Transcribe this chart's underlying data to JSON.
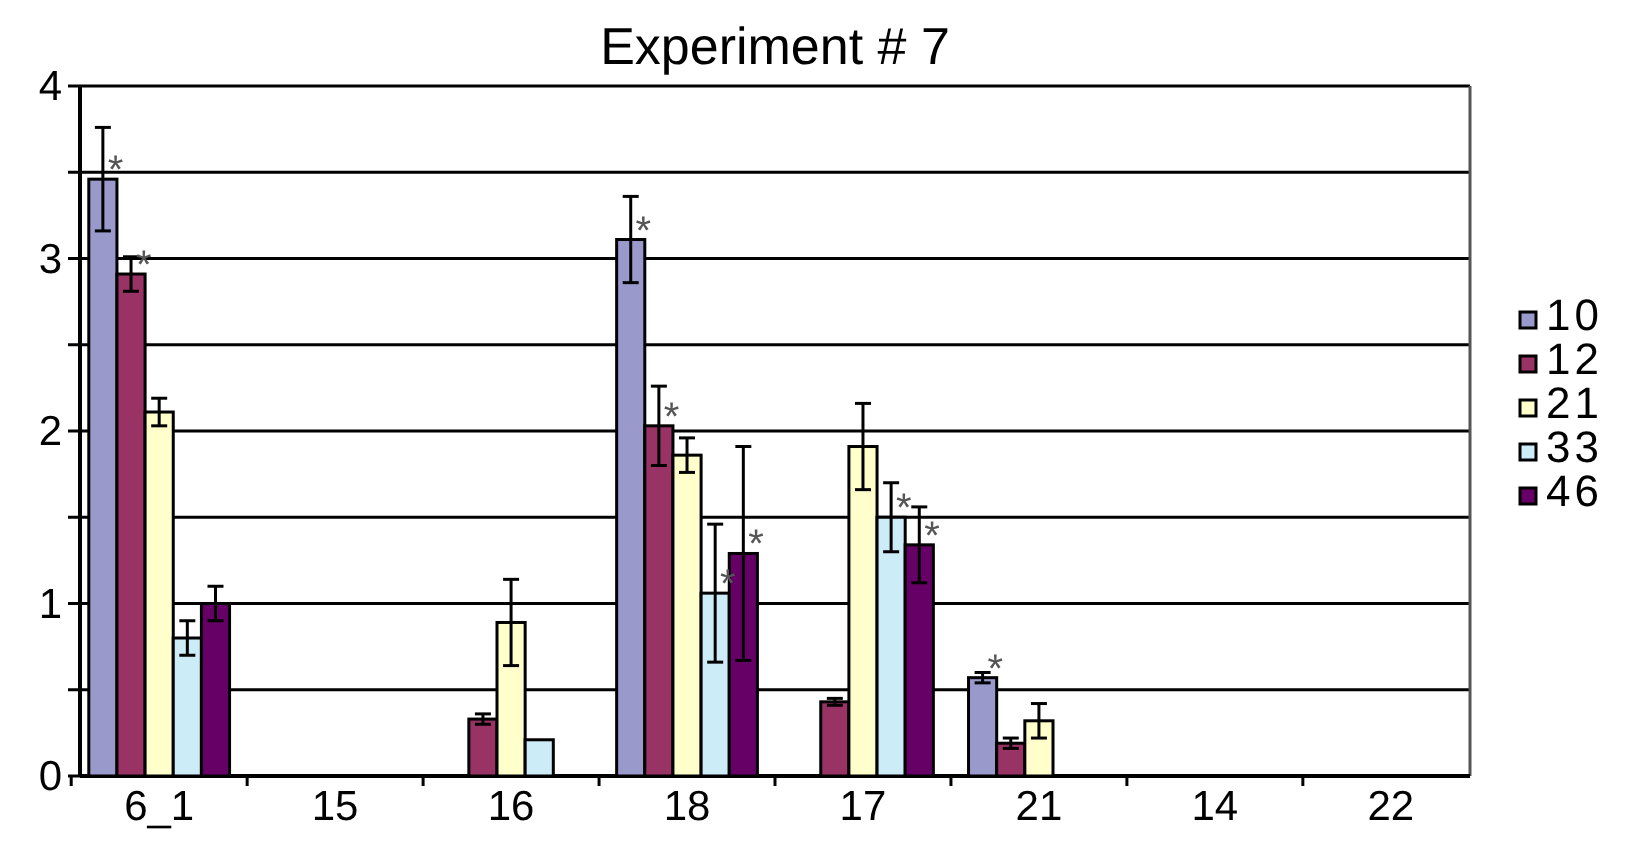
{
  "chart_data": {
    "type": "bar",
    "title": "Experiment # 7",
    "categories": [
      "6_1",
      "15",
      "16",
      "18",
      "17",
      "21",
      "14",
      "22"
    ],
    "series": [
      {
        "name": "10",
        "color": "#9999cc",
        "values": [
          3.46,
          null,
          null,
          3.11,
          null,
          0.57,
          null,
          null
        ],
        "errors": [
          0.3,
          null,
          null,
          0.25,
          null,
          0.03,
          null,
          null
        ],
        "value_labels": [
          "*",
          null,
          null,
          "*",
          null,
          "*",
          null,
          null
        ]
      },
      {
        "name": "12",
        "color": "#993366",
        "values": [
          2.91,
          null,
          0.33,
          2.03,
          0.43,
          0.19,
          null,
          null
        ],
        "errors": [
          0.1,
          null,
          0.03,
          0.23,
          0.02,
          0.03,
          null,
          null
        ],
        "value_labels": [
          "*",
          null,
          null,
          "*",
          null,
          null,
          null,
          null
        ]
      },
      {
        "name": "21",
        "color": "#ffffcc",
        "values": [
          2.11,
          null,
          0.89,
          1.86,
          1.91,
          0.32,
          null,
          null
        ],
        "errors": [
          0.08,
          null,
          0.25,
          0.1,
          0.25,
          0.1,
          null,
          null
        ]
      },
      {
        "name": "33",
        "color": "#ccecf7",
        "values": [
          0.8,
          null,
          0.21,
          1.06,
          1.5,
          null,
          null,
          null
        ],
        "errors": [
          0.1,
          null,
          null,
          0.4,
          0.2,
          null,
          null,
          null
        ],
        "value_labels": [
          null,
          null,
          null,
          "*",
          "*",
          null,
          null,
          null
        ]
      },
      {
        "name": "46",
        "color": "#660066",
        "values": [
          1.0,
          null,
          null,
          1.29,
          1.34,
          null,
          null,
          null
        ],
        "errors": [
          0.1,
          null,
          null,
          0.62,
          0.22,
          null,
          null,
          null
        ],
        "value_labels": [
          null,
          null,
          null,
          "*",
          "*",
          null,
          null,
          null
        ]
      }
    ],
    "ylim": [
      0,
      4
    ],
    "yticks": [
      0,
      {
        "value": 0.5,
        "label": null
      },
      1,
      {
        "value": 1.5,
        "label": null
      },
      2,
      {
        "value": 2.5,
        "label": null
      },
      3,
      {
        "value": 3.5,
        "label": null
      },
      4
    ],
    "grid": "y",
    "legend": "right"
  }
}
